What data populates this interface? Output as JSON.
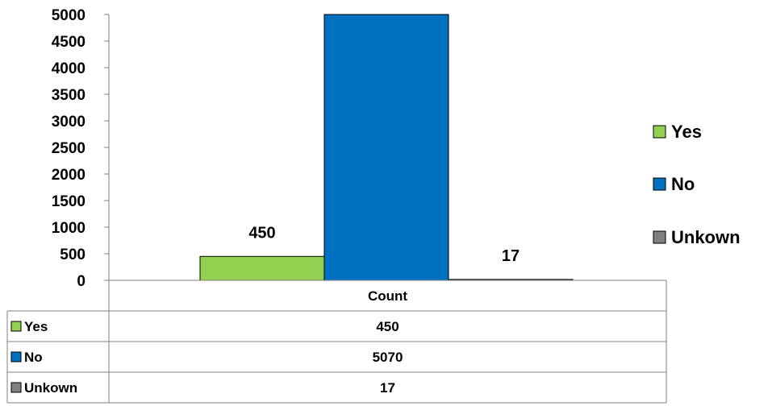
{
  "chart_data": {
    "type": "bar",
    "category": "Count",
    "series": [
      {
        "name": "Yes",
        "value": 450,
        "color": "#92D050"
      },
      {
        "name": "No",
        "value": 5070,
        "color": "#0070C0"
      },
      {
        "name": "Unkown",
        "value": 17,
        "color": "#808080"
      }
    ],
    "ylim": [
      0,
      5000
    ],
    "yticks": [
      "0",
      "500",
      "1000",
      "1500",
      "2000",
      "2500",
      "3000",
      "3500",
      "4000",
      "4500",
      "5000"
    ],
    "data_labels": [
      "450",
      "",
      "17"
    ],
    "legend_position": "right",
    "data_table": {
      "header": "Count",
      "rows": [
        {
          "label": "Yes",
          "value": "450"
        },
        {
          "label": "No",
          "value": "5070"
        },
        {
          "label": "Unkown",
          "value": "17"
        }
      ]
    }
  }
}
